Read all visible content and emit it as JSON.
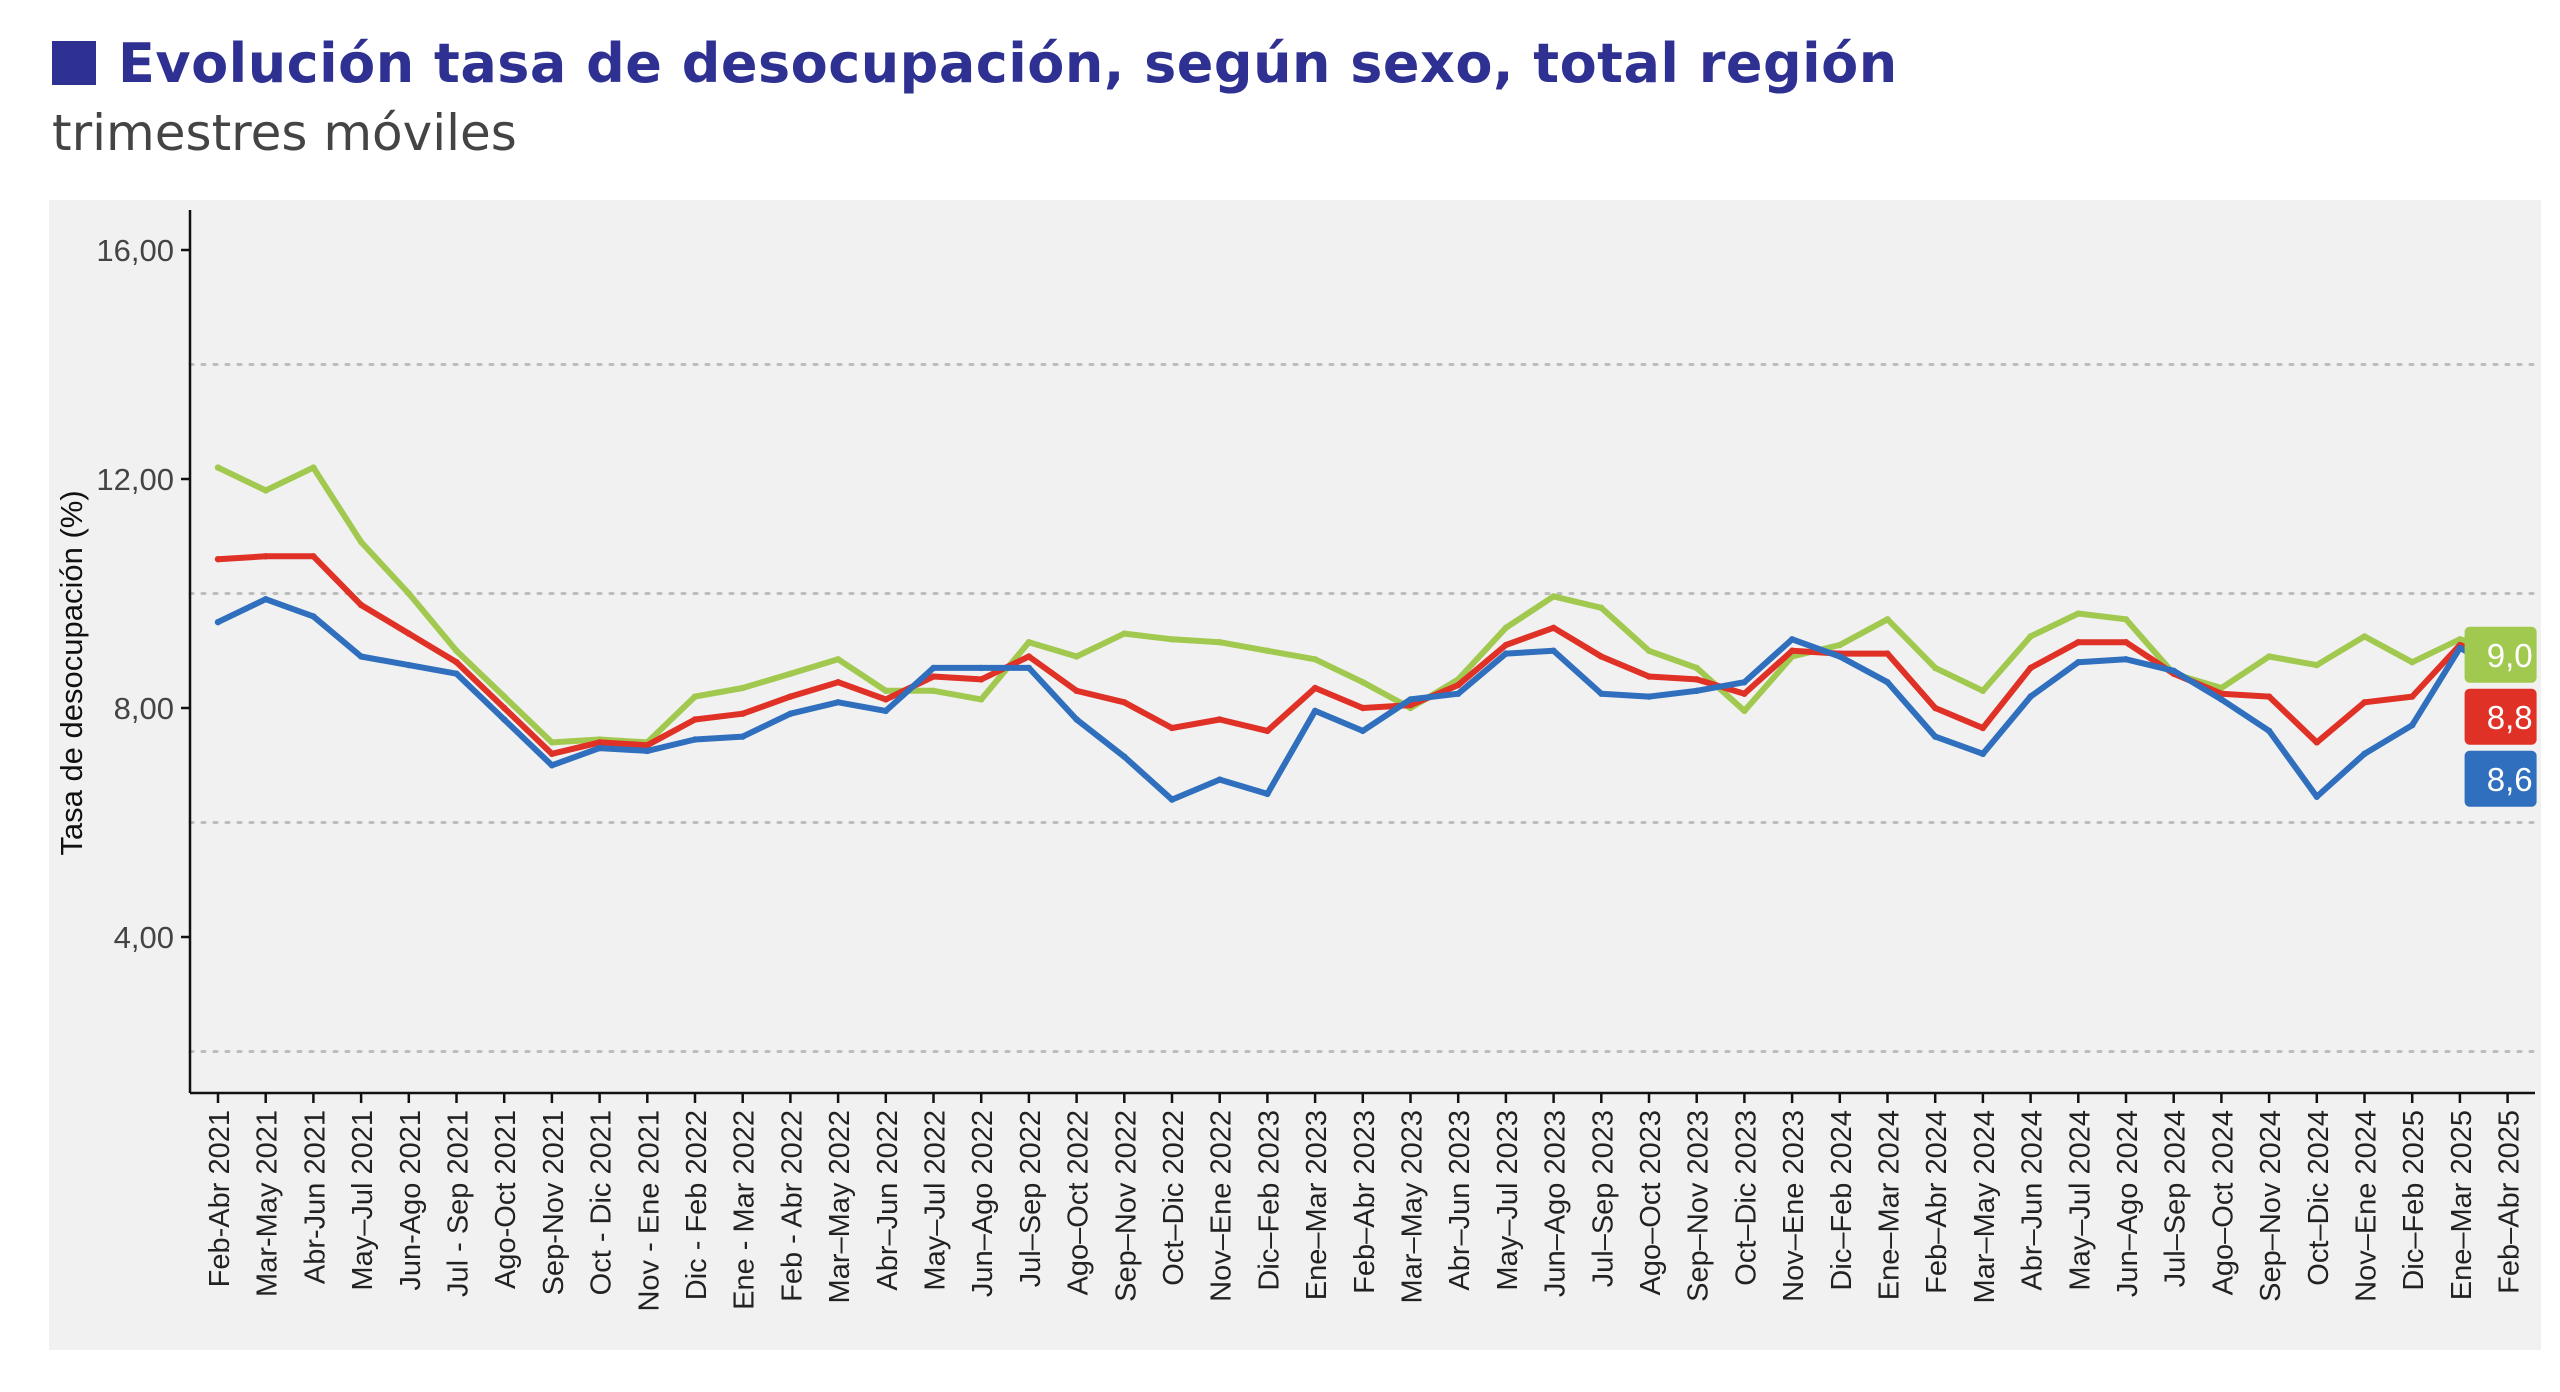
{
  "header": {
    "title": "Evolución tasa de desocupación, según sexo, total región",
    "subtitle": "trimestres móviles"
  },
  "colors": {
    "title": "#2e3192",
    "panel_background": "#f1f1f1"
  },
  "chart_data": {
    "type": "line",
    "title": "Evolución tasa de desocupación, según sexo, total región",
    "subtitle": "trimestres móviles",
    "xlabel": "",
    "ylabel": "Tasa de desocupación (%)",
    "ylim": [
      0,
      17
    ],
    "yticks": [
      4,
      8,
      12,
      16
    ],
    "ytick_labels": [
      "4,00",
      "8,00",
      "12,00",
      "16,00"
    ],
    "y_dotted_gridlines": [
      2,
      6,
      10,
      14
    ],
    "legend": "none",
    "categories": [
      "Feb-Abr 2021",
      "Mar-May 2021",
      "Abr-Jun 2021",
      "May–Jul 2021",
      "Jun-Ago 2021",
      "Jul - Sep 2021",
      "Ago-Oct 2021",
      "Sep-Nov 2021",
      "Oct - Dic 2021",
      "Nov - Ene 2021",
      "Dic - Feb 2022",
      "Ene - Mar 2022",
      "Feb - Abr 2022",
      "Mar–May 2022",
      "Abr–Jun 2022",
      "May–Jul 2022",
      "Jun–Ago 2022",
      "Jul–Sep 2022",
      "Ago–Oct 2022",
      "Sep–Nov 2022",
      "Oct–Dic 2022",
      "Nov–Ene 2022",
      "Dic–Feb 2023",
      "Ene–Mar 2023",
      "Feb–Abr 2023",
      "Mar–May 2023",
      "Abr–Jun 2023",
      "May–Jul 2023",
      "Jun–Ago 2023",
      "Jul–Sep 2023",
      "Ago–Oct 2023",
      "Sep–Nov 2023",
      "Oct–Dic 2023",
      "Nov–Ene 2023",
      "Dic–Feb 2024",
      "Ene–Mar 2024",
      "Feb–Abr 2024",
      "Mar–May 2024",
      "Abr–Jun 2024",
      "May–Jul 2024",
      "Jun–Ago 2024",
      "Jul–Sep 2024",
      "Ago–Oct 2024",
      "Sep–Nov 2024",
      "Oct–Dic 2024",
      "Nov–Ene 2024",
      "Dic–Feb 2025",
      "Ene–Mar 2025",
      "Feb–Abr 2025"
    ],
    "series": [
      {
        "color": "#a2c94f",
        "end_label": "9,0",
        "values": [
          12.2,
          11.8,
          12.2,
          10.9,
          10.0,
          9.0,
          8.2,
          7.4,
          7.45,
          7.4,
          8.2,
          8.35,
          8.6,
          8.85,
          8.3,
          8.3,
          8.15,
          9.15,
          8.9,
          9.3,
          9.2,
          9.15,
          9.0,
          8.85,
          8.45,
          8.0,
          8.5,
          9.4,
          9.95,
          9.75,
          9.0,
          8.7,
          7.95,
          8.9,
          9.1,
          9.55,
          8.7,
          8.3,
          9.25,
          9.65,
          9.55,
          8.6,
          8.35,
          8.9,
          8.75,
          9.25,
          8.8,
          9.2,
          9.0
        ]
      },
      {
        "color": "#e03127",
        "end_label": "8,8",
        "values": [
          10.6,
          10.65,
          10.65,
          9.8,
          9.3,
          8.8,
          8.0,
          7.2,
          7.4,
          7.35,
          7.8,
          7.9,
          8.2,
          8.45,
          8.15,
          8.55,
          8.5,
          8.9,
          8.3,
          8.1,
          7.65,
          7.8,
          7.6,
          8.35,
          8.0,
          8.05,
          8.4,
          9.1,
          9.4,
          8.9,
          8.55,
          8.5,
          8.25,
          9.0,
          8.95,
          8.95,
          8.0,
          7.65,
          8.7,
          9.15,
          9.15,
          8.6,
          8.25,
          8.2,
          7.4,
          8.1,
          8.2,
          9.1,
          8.8
        ]
      },
      {
        "color": "#2f6fbd",
        "end_label": "8,6",
        "values": [
          9.5,
          9.9,
          9.6,
          8.9,
          8.75,
          8.6,
          7.8,
          7.0,
          7.3,
          7.25,
          7.45,
          7.5,
          7.9,
          8.1,
          7.95,
          8.7,
          8.7,
          8.7,
          7.8,
          7.15,
          6.4,
          6.75,
          6.5,
          7.95,
          7.6,
          8.15,
          8.25,
          8.95,
          9.0,
          8.25,
          8.2,
          8.3,
          8.45,
          9.2,
          8.9,
          8.45,
          7.5,
          7.2,
          8.2,
          8.8,
          8.85,
          8.65,
          8.15,
          7.6,
          6.45,
          7.2,
          7.7,
          9.05,
          8.6
        ]
      }
    ]
  }
}
